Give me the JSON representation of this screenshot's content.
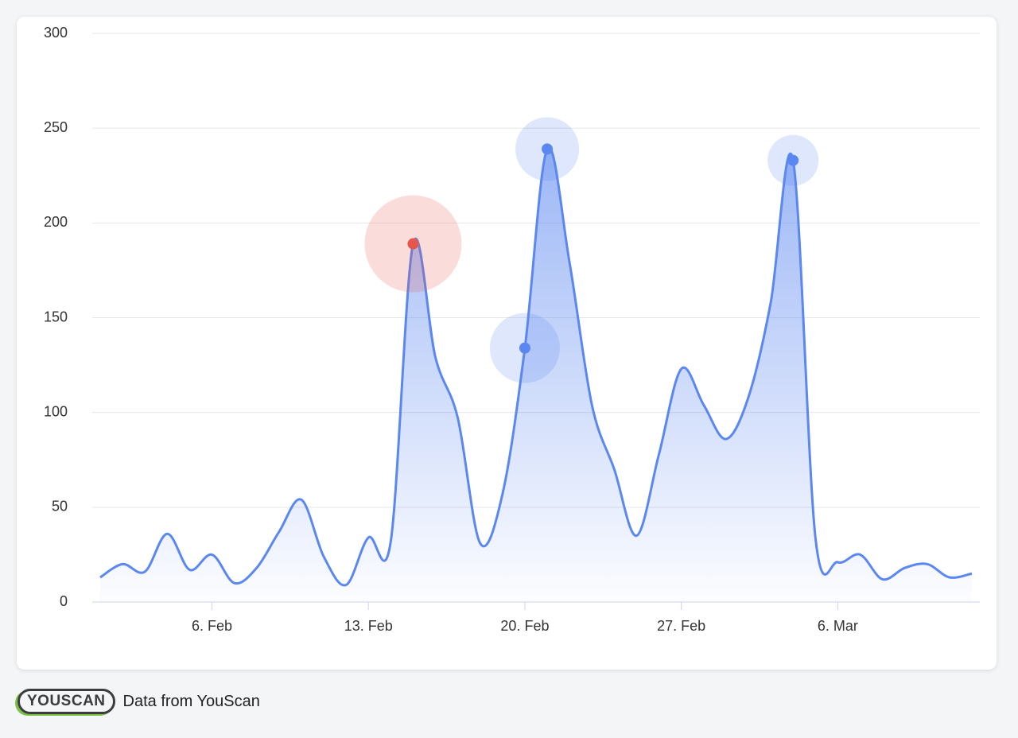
{
  "chart_data": {
    "type": "area",
    "categories": [
      null,
      null,
      null,
      null,
      null,
      "6. Feb",
      null,
      null,
      null,
      null,
      null,
      null,
      "13. Feb",
      null,
      null,
      null,
      null,
      null,
      null,
      "20. Feb",
      null,
      null,
      null,
      null,
      null,
      null,
      "27. Feb",
      null,
      null,
      null,
      null,
      null,
      null,
      "6. Mar",
      null,
      null,
      null,
      null,
      null,
      null
    ],
    "values": [
      13,
      20,
      16,
      36,
      17,
      25,
      10,
      18,
      37,
      54,
      24,
      9,
      34,
      32,
      189,
      129,
      97,
      31,
      57,
      134,
      239,
      179,
      104,
      70,
      35,
      78,
      123,
      104,
      86,
      108,
      158,
      233,
      34,
      21,
      25,
      12,
      18,
      20,
      13,
      15
    ],
    "color": "#5b87f0",
    "highlights": [
      {
        "index": 14,
        "color": "#e4574a"
      },
      {
        "index": 19,
        "color": "#5b87f0"
      },
      {
        "index": 20,
        "color": "#5b87f0"
      },
      {
        "index": 31,
        "color": "#5b87f0"
      }
    ],
    "ylim": [
      0,
      300
    ],
    "yticks": [
      0,
      50,
      100,
      150,
      200,
      250,
      300
    ],
    "grid": true
  },
  "footer": {
    "logo": "YOUSCAN",
    "text": "Data from YouScan"
  }
}
